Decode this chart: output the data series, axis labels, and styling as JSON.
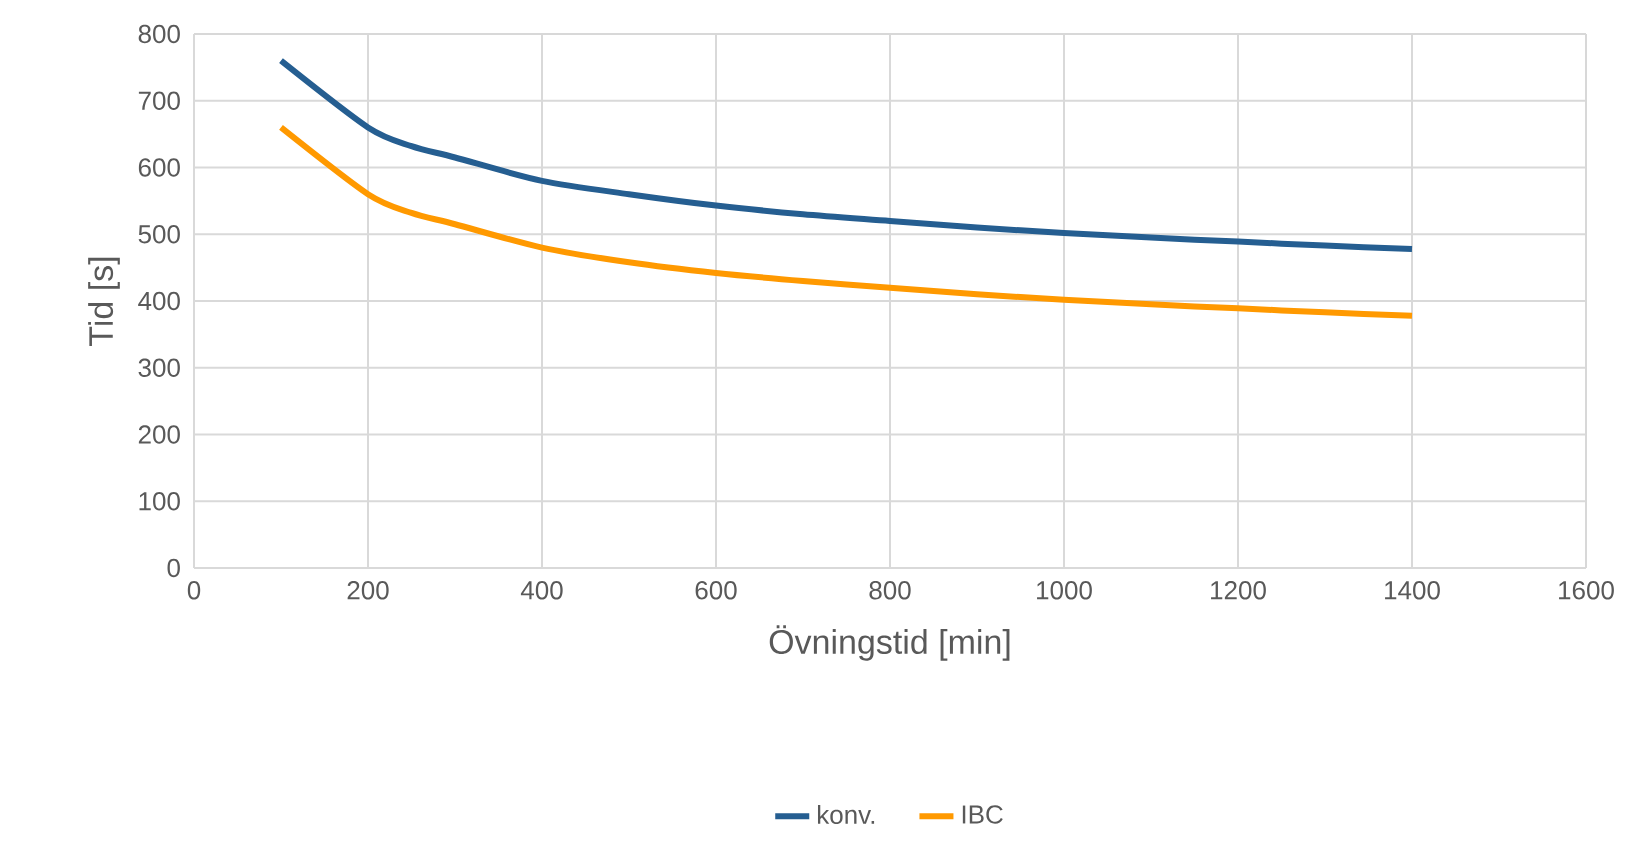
{
  "chart_data": {
    "type": "line",
    "xlabel": "Övningstid [min]",
    "ylabel": "Tid [s]",
    "x": [
      100,
      200,
      250,
      300,
      400,
      500,
      600,
      700,
      800,
      900,
      1000,
      1100,
      1200,
      1300,
      1400
    ],
    "series": [
      {
        "name": "konv.",
        "color": "#255e91",
        "values": [
          760,
          660,
          632,
          615,
          580,
          560,
          543,
          530,
          520,
          510,
          502,
          495,
          489,
          483,
          478
        ]
      },
      {
        "name": "IBC",
        "color": "#ff9900",
        "values": [
          660,
          560,
          532,
          515,
          480,
          458,
          442,
          430,
          420,
          410,
          402,
          395,
          389,
          383,
          378
        ]
      }
    ],
    "xlim": [
      0,
      1600
    ],
    "xticks": [
      0,
      200,
      400,
      600,
      800,
      1000,
      1200,
      1400,
      1600
    ],
    "ylim": [
      0,
      800
    ],
    "yticks": [
      0,
      100,
      200,
      300,
      400,
      500,
      600,
      700,
      800
    ],
    "grid": true,
    "legend": "bottom",
    "marker": "none",
    "line_style": "solid"
  }
}
